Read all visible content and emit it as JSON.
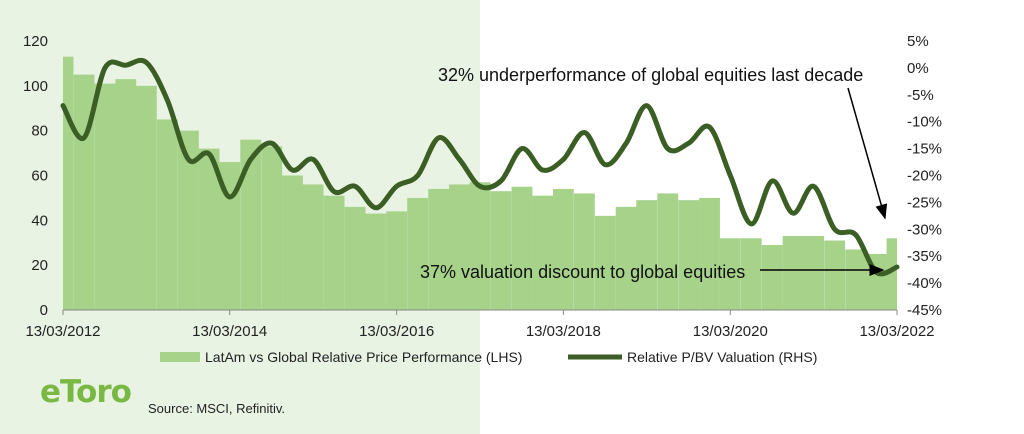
{
  "chart_data": {
    "type": "bar+line",
    "x_start": "13/03/2012",
    "x_end": "13/03/2022",
    "x_tick_labels": [
      "13/03/2012",
      "13/03/2014",
      "13/03/2016",
      "13/03/2018",
      "13/03/2020",
      "13/03/2022"
    ],
    "left_axis": {
      "ticks": [
        0,
        20,
        40,
        60,
        80,
        100,
        120
      ],
      "range": [
        0,
        120
      ]
    },
    "right_axis": {
      "ticks": [
        "5%",
        "0%",
        "-5%",
        "-10%",
        "-15%",
        "-20%",
        "-25%",
        "-30%",
        "-35%",
        "-40%",
        "-45%"
      ],
      "range_pct": [
        -45,
        5
      ]
    },
    "series": [
      {
        "name": "LatAm vs Global Relative Price Performance (LHS)",
        "type": "bar",
        "axis": "left",
        "color": "#a6d28a",
        "points": [
          [
            "13/03/2012",
            113
          ],
          [
            "13/06/2012",
            105
          ],
          [
            "13/09/2012",
            101
          ],
          [
            "13/12/2012",
            103
          ],
          [
            "13/03/2013",
            100
          ],
          [
            "13/06/2013",
            85
          ],
          [
            "13/09/2013",
            80
          ],
          [
            "13/12/2013",
            72
          ],
          [
            "13/03/2014",
            66
          ],
          [
            "13/06/2014",
            76
          ],
          [
            "13/09/2014",
            73
          ],
          [
            "13/12/2014",
            60
          ],
          [
            "13/03/2015",
            56
          ],
          [
            "13/06/2015",
            51
          ],
          [
            "13/09/2015",
            46
          ],
          [
            "13/12/2015",
            43
          ],
          [
            "13/03/2016",
            44
          ],
          [
            "13/06/2016",
            50
          ],
          [
            "13/09/2016",
            54
          ],
          [
            "13/12/2016",
            56
          ],
          [
            "13/03/2017",
            57
          ],
          [
            "13/06/2017",
            53
          ],
          [
            "13/09/2017",
            55
          ],
          [
            "13/12/2017",
            51
          ],
          [
            "13/03/2018",
            54
          ],
          [
            "13/06/2018",
            52
          ],
          [
            "13/09/2018",
            42
          ],
          [
            "13/12/2018",
            46
          ],
          [
            "13/03/2019",
            49
          ],
          [
            "13/06/2019",
            52
          ],
          [
            "13/09/2019",
            49
          ],
          [
            "13/12/2019",
            50
          ],
          [
            "13/03/2020",
            32
          ],
          [
            "13/06/2020",
            32
          ],
          [
            "13/09/2020",
            29
          ],
          [
            "13/12/2020",
            33
          ],
          [
            "13/03/2021",
            33
          ],
          [
            "13/06/2021",
            31
          ],
          [
            "13/09/2021",
            27
          ],
          [
            "13/12/2021",
            25
          ],
          [
            "13/03/2022",
            32
          ]
        ]
      },
      {
        "name": "Relative P/BV Valuation (RHS)",
        "type": "line",
        "axis": "right",
        "color": "#3a5e23",
        "points": [
          [
            "13/03/2012",
            -7
          ],
          [
            "13/06/2012",
            -13
          ],
          [
            "13/09/2012",
            0
          ],
          [
            "13/12/2012",
            0.5
          ],
          [
            "13/03/2013",
            1
          ],
          [
            "13/06/2013",
            -6
          ],
          [
            "13/09/2013",
            -17
          ],
          [
            "13/12/2013",
            -16
          ],
          [
            "13/03/2014",
            -24
          ],
          [
            "13/06/2014",
            -17
          ],
          [
            "13/09/2014",
            -14
          ],
          [
            "13/12/2014",
            -19
          ],
          [
            "13/03/2015",
            -17
          ],
          [
            "13/06/2015",
            -23
          ],
          [
            "13/09/2015",
            -22
          ],
          [
            "13/12/2015",
            -26
          ],
          [
            "13/03/2016",
            -22
          ],
          [
            "13/06/2016",
            -20
          ],
          [
            "13/09/2016",
            -13
          ],
          [
            "13/12/2016",
            -17
          ],
          [
            "13/03/2017",
            -22
          ],
          [
            "13/06/2017",
            -21
          ],
          [
            "13/09/2017",
            -15
          ],
          [
            "13/12/2017",
            -19
          ],
          [
            "13/03/2018",
            -17
          ],
          [
            "13/06/2018",
            -12
          ],
          [
            "13/09/2018",
            -18
          ],
          [
            "13/12/2018",
            -14
          ],
          [
            "13/03/2019",
            -7
          ],
          [
            "13/06/2019",
            -15
          ],
          [
            "13/09/2019",
            -14
          ],
          [
            "13/12/2019",
            -11
          ],
          [
            "13/03/2020",
            -20
          ],
          [
            "13/06/2020",
            -29
          ],
          [
            "13/09/2020",
            -21
          ],
          [
            "13/12/2020",
            -27
          ],
          [
            "13/03/2021",
            -22
          ],
          [
            "13/06/2021",
            -30
          ],
          [
            "13/09/2021",
            -31
          ],
          [
            "13/12/2021",
            -38
          ],
          [
            "13/03/2022",
            -37
          ]
        ]
      }
    ],
    "annotations": [
      "32% underperformance of global equities last decade",
      "37% valuation discount to global equities"
    ],
    "legend_placement": "bottom"
  },
  "footer": {
    "logo_text": "eToro",
    "source": "Source: MSCI, Refinitiv."
  }
}
